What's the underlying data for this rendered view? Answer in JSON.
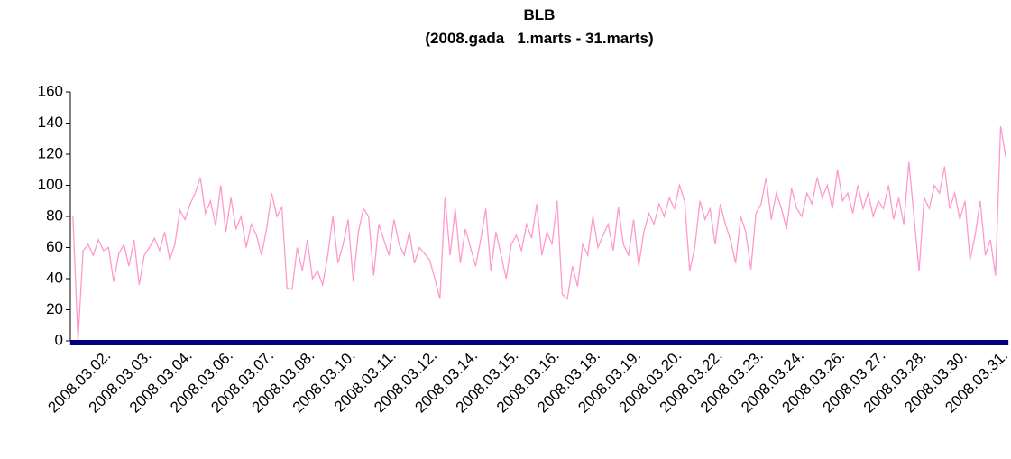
{
  "chart_data": {
    "type": "line",
    "title": "BLB",
    "subtitle": "(2008.gada   1.marts - 31.marts)",
    "categories": [
      null,
      null,
      null,
      null,
      null,
      null,
      null,
      "2008.03.02.",
      null,
      null,
      null,
      null,
      null,
      null,
      null,
      "2008.03.03.",
      null,
      null,
      null,
      null,
      null,
      null,
      null,
      "2008.03.04.",
      null,
      null,
      null,
      null,
      null,
      null,
      null,
      "2008.03.06.",
      null,
      null,
      null,
      null,
      null,
      null,
      null,
      "2008.03.07.",
      null,
      null,
      null,
      null,
      null,
      null,
      null,
      "2008.03.08.",
      null,
      null,
      null,
      null,
      null,
      null,
      null,
      "2008.03.10.",
      null,
      null,
      null,
      null,
      null,
      null,
      null,
      "2008.03.11.",
      null,
      null,
      null,
      null,
      null,
      null,
      null,
      "2008.03.12.",
      null,
      null,
      null,
      null,
      null,
      null,
      null,
      "2008.03.14.",
      null,
      null,
      null,
      null,
      null,
      null,
      null,
      "2008.03.15.",
      null,
      null,
      null,
      null,
      null,
      null,
      null,
      "2008.03.16.",
      null,
      null,
      null,
      null,
      null,
      null,
      null,
      "2008.03.18.",
      null,
      null,
      null,
      null,
      null,
      null,
      null,
      "2008.03.19.",
      null,
      null,
      null,
      null,
      null,
      null,
      null,
      "2008.03.20.",
      null,
      null,
      null,
      null,
      null,
      null,
      null,
      "2008.03.22.",
      null,
      null,
      null,
      null,
      null,
      null,
      null,
      "2008.03.23.",
      null,
      null,
      null,
      null,
      null,
      null,
      null,
      "2008.03.24.",
      null,
      null,
      null,
      null,
      null,
      null,
      null,
      "2008.03.26.",
      null,
      null,
      null,
      null,
      null,
      null,
      null,
      "2008.03.27.",
      null,
      null,
      null,
      null,
      null,
      null,
      null,
      "2008.03.28.",
      null,
      null,
      null,
      null,
      null,
      null,
      null,
      "2008.03.30.",
      null,
      null,
      null,
      null,
      null,
      null,
      null,
      "2008.03.31."
    ],
    "series": [
      {
        "color": "#ff99cc",
        "values": [
          80,
          0,
          58,
          62,
          55,
          65,
          58,
          60,
          38,
          56,
          62,
          48,
          65,
          36,
          55,
          60,
          66,
          58,
          70,
          52,
          62,
          84,
          78,
          88,
          95,
          105,
          82,
          90,
          74,
          100,
          70,
          92,
          72,
          80,
          60,
          75,
          68,
          55,
          72,
          95,
          80,
          86,
          34,
          33,
          60,
          45,
          65,
          40,
          45,
          36,
          55,
          80,
          50,
          62,
          78,
          38,
          70,
          85,
          80,
          42,
          75,
          65,
          55,
          78,
          62,
          55,
          70,
          50,
          60,
          56,
          52,
          40,
          27,
          92,
          55,
          85,
          50,
          72,
          60,
          48,
          65,
          85,
          45,
          70,
          55,
          40,
          62,
          68,
          58,
          75,
          66,
          88,
          55,
          70,
          62,
          90,
          30,
          27,
          48,
          35,
          62,
          55,
          80,
          60,
          68,
          75,
          58,
          86,
          62,
          55,
          78,
          48,
          70,
          82,
          75,
          88,
          80,
          92,
          85,
          100,
          90,
          45,
          60,
          90,
          78,
          85,
          62,
          88,
          75,
          65,
          50,
          80,
          70,
          46,
          82,
          88,
          105,
          78,
          95,
          85,
          72,
          98,
          85,
          80,
          95,
          88,
          105,
          92,
          100,
          85,
          110,
          90,
          95,
          82,
          100,
          85,
          95,
          80,
          90,
          85,
          100,
          78,
          92,
          75,
          115,
          80,
          45,
          92,
          85,
          100,
          95,
          112,
          85,
          95,
          78,
          90,
          52,
          68,
          90,
          55,
          65,
          42,
          138,
          118
        ]
      },
      {
        "color": "#000080",
        "marker": "square",
        "values": [
          0,
          0,
          0,
          0,
          0,
          0,
          0,
          0,
          0,
          0,
          0,
          0,
          0,
          0,
          0,
          0,
          0,
          0,
          0,
          0,
          0,
          0,
          0,
          0,
          0,
          0,
          0,
          0,
          0,
          0,
          0,
          0,
          0,
          0,
          0,
          0,
          0,
          0,
          0,
          0,
          0,
          0,
          0,
          0,
          0,
          0,
          0,
          0,
          0,
          0,
          0,
          0,
          0,
          0,
          0,
          0,
          0,
          0,
          0,
          0,
          0,
          0,
          0,
          0,
          0,
          0,
          0,
          0,
          0,
          0,
          0,
          0,
          0,
          0,
          0,
          0,
          0,
          0,
          0,
          0,
          0,
          0,
          0,
          0,
          0,
          0,
          0,
          0,
          0,
          0,
          0,
          0,
          0,
          0,
          0,
          0,
          0,
          0,
          0,
          0,
          0,
          0,
          0,
          0,
          0,
          0,
          0,
          0,
          0,
          0,
          0,
          0,
          0,
          0,
          0,
          0,
          0,
          0,
          0,
          0,
          0,
          0,
          0,
          0,
          0,
          0,
          0,
          0,
          0,
          0,
          0,
          0,
          0,
          0,
          0,
          0,
          0,
          0,
          0,
          0,
          0,
          0,
          0,
          0,
          0,
          0,
          0,
          0,
          0,
          0,
          0,
          0,
          0,
          0,
          0,
          0,
          0,
          0,
          0,
          0,
          0,
          0,
          0,
          0,
          0,
          0,
          0,
          0,
          0,
          0,
          0,
          0,
          0,
          0,
          0,
          0,
          0,
          0,
          0,
          0,
          0,
          0,
          0,
          0
        ]
      }
    ],
    "ylim": [
      0,
      160
    ],
    "yticks": [
      0,
      20,
      40,
      60,
      80,
      100,
      120,
      140,
      160
    ],
    "grid": false
  }
}
